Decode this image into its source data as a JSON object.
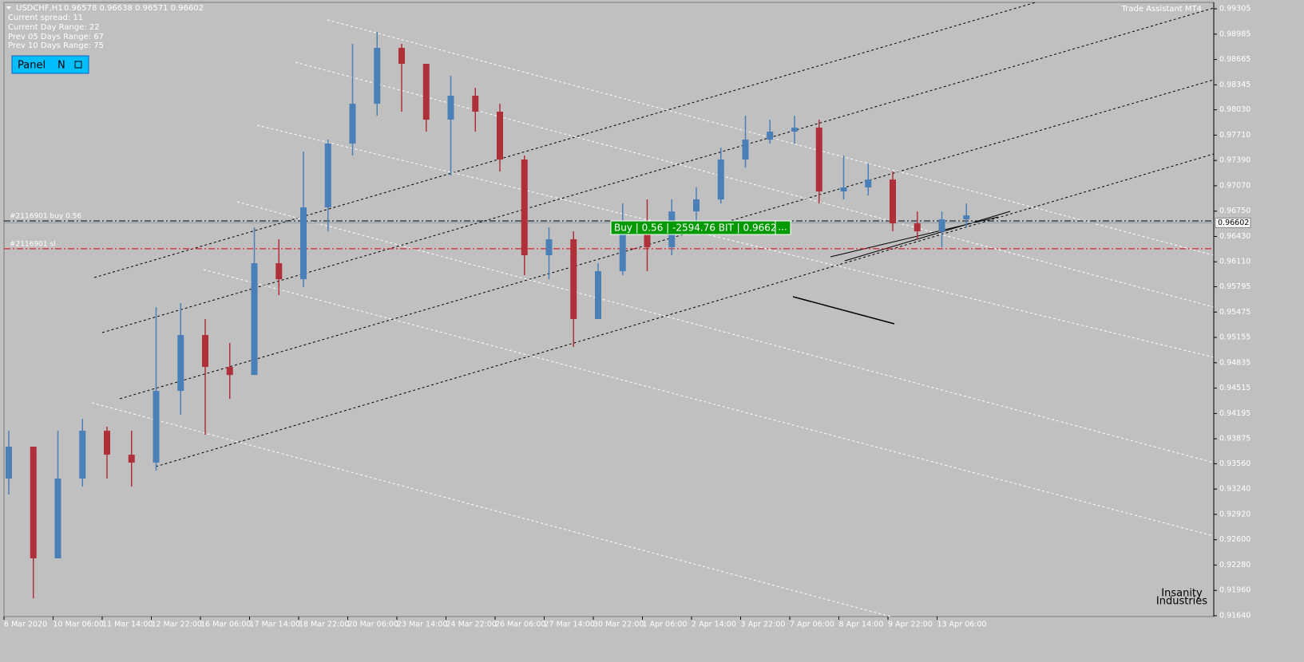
{
  "header": {
    "symbol": "USDCHF,H1",
    "quote": "0.96578 0.96638 0.96571 0.96602"
  },
  "info": [
    "Current spread: 11",
    "Current  Day    Range: 22",
    "Prev 05  Days  Range: 67",
    "Prev 10  Days  Range: 75"
  ],
  "panel": {
    "title": "Panel",
    "button": "N"
  },
  "trade_assistant": "Trade Assistant MT4",
  "watermark": [
    "Insanity",
    "Industries"
  ],
  "order": {
    "buy_label": "#2116901 buy 0.56",
    "sl_label": "#2116901 sl",
    "box": "Buy | 0.56 | -2594.76 BIT | 0.96626",
    "box_more": "..."
  },
  "chart_data": {
    "type": "candlestick",
    "time_labels": [
      "6 Mar 2020",
      "10 Mar 06:00",
      "11 Mar 14:00",
      "12 Mar 22:00",
      "16 Mar 06:00",
      "17 Mar 14:00",
      "18 Mar 22:00",
      "20 Mar 06:00",
      "23 Mar 14:00",
      "24 Mar 22:00",
      "26 Mar 06:00",
      "27 Mar 14:00",
      "30 Mar 22:00",
      "1 Apr 06:00",
      "2 Apr 14:00",
      "3 Apr 22:00",
      "7 Apr 06:00",
      "8 Apr 14:00",
      "9 Apr 22:00",
      "13 Apr 06:00"
    ],
    "open": [
      0.93372,
      0.93775,
      0.92365,
      0.93372,
      0.93976,
      0.93674,
      0.93574,
      0.9448,
      0.95185,
      0.94782,
      0.94681,
      0.96092,
      0.9589,
      0.96797,
      0.97603,
      0.98106,
      0.98811,
      0.9861,
      0.97905,
      0.98207,
      0.98006,
      0.97401,
      0.96192,
      0.96394,
      0.95387,
      0.95991,
      0.96495,
      0.96293,
      0.96746,
      0.96898,
      0.97401,
      0.97653,
      0.97754,
      0.97804,
      0.96998,
      0.97049,
      0.97149,
      0.96595,
      0.96495,
      0.96646
    ],
    "high": [
      0.93976,
      0.93775,
      0.93976,
      0.94127,
      0.94027,
      0.93976,
      0.95538,
      0.95588,
      0.95387,
      0.95084,
      0.96545,
      0.96394,
      0.97502,
      0.97653,
      0.98862,
      0.99013,
      0.98862,
      0.9861,
      0.98459,
      0.98308,
      0.98106,
      0.97452,
      0.96545,
      0.96495,
      0.96092,
      0.96847,
      0.96898,
      0.96898,
      0.97049,
      0.97552,
      0.97955,
      0.97905,
      0.97955,
      0.97905,
      0.97452,
      0.97351,
      0.9725,
      0.96746,
      0.96746,
      0.96847
    ],
    "low": [
      0.93171,
      0.91861,
      0.92365,
      0.93271,
      0.93372,
      0.93271,
      0.93473,
      0.94178,
      0.93926,
      0.94379,
      0.94681,
      0.95689,
      0.9579,
      0.96495,
      0.97452,
      0.97955,
      0.98006,
      0.97754,
      0.972,
      0.97754,
      0.9725,
      0.95941,
      0.9589,
      0.95034,
      0.95387,
      0.95941,
      0.95991,
      0.96192,
      0.96595,
      0.96847,
      0.973,
      0.97603,
      0.97603,
      0.96847,
      0.96898,
      0.96948,
      0.96495,
      0.96394,
      0.96293,
      0.96545
    ],
    "close": [
      0.93775,
      0.92365,
      0.93372,
      0.93976,
      0.93674,
      0.93574,
      0.9448,
      0.95185,
      0.94782,
      0.94681,
      0.96092,
      0.9589,
      0.96797,
      0.97603,
      0.98106,
      0.98811,
      0.9861,
      0.97905,
      0.98207,
      0.98006,
      0.97401,
      0.96192,
      0.96394,
      0.95387,
      0.95991,
      0.96495,
      0.96293,
      0.96746,
      0.96898,
      0.97401,
      0.97653,
      0.97754,
      0.97804,
      0.96998,
      0.97049,
      0.97149,
      0.96595,
      0.96495,
      0.96646,
      0.96696
    ],
    "up_color": "#4a7fb8",
    "down_color": "#b0303a",
    "ylim": [
      0.9163,
      0.99386
    ],
    "yticks": [
      0.99305,
      0.98985,
      0.98665,
      0.98345,
      {
        "value": 0.9803,
        "label": "0.98030"
      },
      {
        "value": 0.9771,
        "label": "0.97710"
      },
      {
        "value": 0.9739,
        "label": "0.97390"
      },
      {
        "value": 0.9707,
        "label": "0.97070"
      },
      {
        "value": 0.9675,
        "label": "0.96750"
      },
      {
        "value": 0.9643,
        "label": "0.96430"
      },
      {
        "value": 0.9611,
        "label": "0.96110"
      },
      0.95795,
      0.95475,
      0.95155,
      0.94835,
      0.94515,
      0.94195,
      0.93875,
      {
        "value": 0.9356,
        "label": "0.93560"
      },
      {
        "value": 0.9324,
        "label": "0.93240"
      },
      {
        "value": 0.9292,
        "label": "0.92920"
      },
      {
        "value": 0.926,
        "label": "0.92600"
      },
      {
        "value": 0.9228,
        "label": "0.92280"
      },
      {
        "value": 0.9196,
        "label": "0.91960"
      },
      {
        "value": 0.9164,
        "label": "0.91640"
      }
    ],
    "entry_price": 0.96626,
    "sl_price": 0.96275,
    "bid": 0.96602
  }
}
